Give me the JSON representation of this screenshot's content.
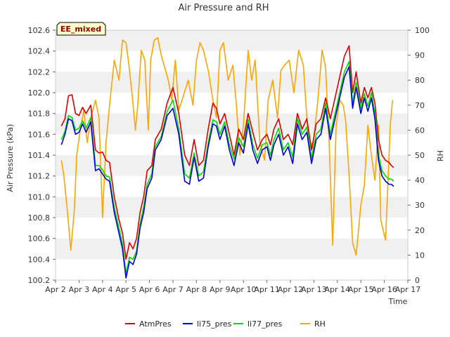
{
  "chart_data": {
    "type": "line",
    "title": "Air Pressure and RH",
    "badge": "EE_mixed",
    "xlabel": "Time",
    "ylabel": "Air Pressure (kPa)",
    "y2label": "RH",
    "x_ticks": [
      "Apr 2",
      "Apr 3",
      "Apr 4",
      "Apr 5",
      "Apr 6",
      "Apr 7",
      "Apr 8",
      "Apr 9",
      "Apr 10",
      "Apr 11",
      "Apr 12",
      "Apr 13",
      "Apr 14",
      "Apr 15",
      "Apr 16",
      "Apr 17"
    ],
    "xlim": [
      0,
      15
    ],
    "ylim": [
      100.2,
      102.6
    ],
    "y_ticks": [
      100.2,
      100.4,
      100.6,
      100.8,
      101.0,
      101.2,
      101.4,
      101.6,
      101.8,
      102.0,
      102.2,
      102.4,
      102.6
    ],
    "y2lim": [
      0,
      100
    ],
    "y2_ticks": [
      0,
      10,
      20,
      30,
      40,
      50,
      60,
      70,
      80,
      90,
      100
    ],
    "grid": "horizontal bands",
    "legend_position": "bottom",
    "series": [
      {
        "name": "AtmPres",
        "color": "#dd0000",
        "axis": "left",
        "x": [
          0.25,
          0.4,
          0.55,
          0.7,
          0.85,
          1.0,
          1.15,
          1.3,
          1.5,
          1.7,
          1.85,
          2.0,
          2.15,
          2.3,
          2.5,
          2.7,
          2.85,
          3.0,
          3.15,
          3.3,
          3.45,
          3.6,
          3.75,
          3.9,
          4.1,
          4.25,
          4.5,
          4.75,
          5.0,
          5.25,
          5.5,
          5.7,
          5.9,
          6.1,
          6.3,
          6.5,
          6.7,
          6.85,
          7.0,
          7.2,
          7.4,
          7.6,
          7.8,
          8.0,
          8.2,
          8.4,
          8.6,
          8.8,
          9.0,
          9.15,
          9.3,
          9.5,
          9.7,
          9.9,
          10.1,
          10.3,
          10.5,
          10.7,
          10.9,
          11.1,
          11.3,
          11.5,
          11.7,
          11.9,
          12.1,
          12.3,
          12.5,
          12.65,
          12.8,
          13.0,
          13.15,
          13.3,
          13.45,
          13.6,
          13.75,
          13.9,
          14.05,
          14.2,
          14.3,
          14.4
        ],
        "y": [
          101.68,
          101.75,
          101.97,
          101.98,
          101.8,
          101.78,
          101.86,
          101.8,
          101.88,
          101.45,
          101.42,
          101.43,
          101.35,
          101.33,
          101.0,
          100.78,
          100.65,
          100.4,
          100.56,
          100.5,
          100.6,
          100.85,
          101.0,
          101.25,
          101.3,
          101.55,
          101.65,
          101.9,
          102.05,
          101.8,
          101.4,
          101.3,
          101.55,
          101.3,
          101.35,
          101.65,
          101.9,
          101.85,
          101.7,
          101.8,
          101.6,
          101.4,
          101.65,
          101.55,
          101.8,
          101.62,
          101.45,
          101.55,
          101.6,
          101.5,
          101.65,
          101.75,
          101.55,
          101.6,
          101.5,
          101.8,
          101.65,
          101.75,
          101.45,
          101.7,
          101.75,
          101.95,
          101.75,
          101.95,
          102.15,
          102.35,
          102.45,
          102.0,
          102.2,
          101.9,
          102.05,
          101.95,
          102.05,
          101.9,
          101.55,
          101.4,
          101.35,
          101.33,
          101.3,
          101.28
        ]
      },
      {
        "name": "li75_pres",
        "color": "#0000dd",
        "axis": "left",
        "x": [
          0.25,
          0.4,
          0.55,
          0.7,
          0.85,
          1.0,
          1.15,
          1.3,
          1.5,
          1.7,
          1.85,
          2.0,
          2.15,
          2.3,
          2.5,
          2.7,
          2.85,
          3.0,
          3.15,
          3.3,
          3.45,
          3.6,
          3.75,
          3.9,
          4.1,
          4.25,
          4.5,
          4.75,
          5.0,
          5.25,
          5.5,
          5.7,
          5.9,
          6.1,
          6.3,
          6.5,
          6.7,
          6.85,
          7.0,
          7.2,
          7.4,
          7.6,
          7.8,
          8.0,
          8.2,
          8.4,
          8.6,
          8.8,
          9.0,
          9.15,
          9.3,
          9.5,
          9.7,
          9.9,
          10.1,
          10.3,
          10.5,
          10.7,
          10.9,
          11.1,
          11.3,
          11.5,
          11.7,
          11.9,
          12.1,
          12.3,
          12.5,
          12.65,
          12.8,
          13.0,
          13.15,
          13.3,
          13.45,
          13.6,
          13.75,
          13.9,
          14.05,
          14.2,
          14.3,
          14.4
        ],
        "y": [
          101.5,
          101.6,
          101.75,
          101.73,
          101.6,
          101.62,
          101.7,
          101.62,
          101.72,
          101.25,
          101.27,
          101.22,
          101.17,
          101.15,
          100.85,
          100.65,
          100.5,
          100.22,
          100.38,
          100.35,
          100.45,
          100.7,
          100.85,
          101.08,
          101.18,
          101.45,
          101.55,
          101.78,
          101.85,
          101.6,
          101.15,
          101.12,
          101.38,
          101.15,
          101.18,
          101.48,
          101.7,
          101.68,
          101.55,
          101.68,
          101.45,
          101.3,
          101.52,
          101.42,
          101.7,
          101.45,
          101.32,
          101.45,
          101.48,
          101.35,
          101.5,
          101.6,
          101.4,
          101.48,
          101.32,
          101.7,
          101.55,
          101.62,
          101.32,
          101.55,
          101.6,
          101.85,
          101.55,
          101.75,
          101.95,
          102.15,
          102.25,
          101.85,
          102.05,
          101.8,
          101.95,
          101.82,
          101.95,
          101.75,
          101.35,
          101.2,
          101.15,
          101.12,
          101.12,
          101.1
        ]
      },
      {
        "name": "li77_pres",
        "color": "#00dd00",
        "axis": "left",
        "x": [
          0.25,
          0.4,
          0.55,
          0.7,
          0.85,
          1.0,
          1.15,
          1.3,
          1.5,
          1.7,
          1.85,
          2.0,
          2.15,
          2.3,
          2.5,
          2.7,
          2.85,
          3.0,
          3.15,
          3.3,
          3.45,
          3.6,
          3.75,
          3.9,
          4.1,
          4.25,
          4.5,
          4.75,
          5.0,
          5.25,
          5.5,
          5.7,
          5.9,
          6.1,
          6.3,
          6.5,
          6.7,
          6.85,
          7.0,
          7.2,
          7.4,
          7.6,
          7.8,
          8.0,
          8.2,
          8.4,
          8.6,
          8.8,
          9.0,
          9.15,
          9.3,
          9.5,
          9.7,
          9.9,
          10.1,
          10.3,
          10.5,
          10.7,
          10.9,
          11.1,
          11.3,
          11.5,
          11.7,
          11.9,
          12.1,
          12.3,
          12.5,
          12.65,
          12.8,
          13.0,
          13.15,
          13.3,
          13.45,
          13.6,
          13.75,
          13.9,
          14.05,
          14.2,
          14.3,
          14.4
        ],
        "y": [
          101.55,
          101.63,
          101.78,
          101.76,
          101.64,
          101.66,
          101.73,
          101.66,
          101.76,
          101.3,
          101.3,
          101.26,
          101.2,
          101.19,
          100.9,
          100.7,
          100.55,
          100.26,
          100.42,
          100.4,
          100.48,
          100.74,
          100.9,
          101.12,
          101.22,
          101.48,
          101.58,
          101.82,
          101.93,
          101.65,
          101.22,
          101.18,
          101.42,
          101.2,
          101.24,
          101.52,
          101.74,
          101.72,
          101.6,
          101.72,
          101.5,
          101.36,
          101.57,
          101.48,
          101.74,
          101.5,
          101.37,
          101.5,
          101.52,
          101.4,
          101.55,
          101.66,
          101.45,
          101.52,
          101.38,
          101.75,
          101.6,
          101.67,
          101.37,
          101.6,
          101.65,
          101.9,
          101.6,
          101.8,
          102.0,
          102.2,
          102.3,
          101.9,
          102.1,
          101.85,
          101.99,
          101.87,
          102.0,
          101.8,
          101.4,
          101.25,
          101.2,
          101.17,
          101.17,
          101.15
        ]
      },
      {
        "name": "RH",
        "color": "#ffa500",
        "axis": "right",
        "x": [
          0.25,
          0.35,
          0.5,
          0.65,
          0.8,
          0.9,
          1.05,
          1.2,
          1.35,
          1.5,
          1.7,
          1.85,
          2.0,
          2.15,
          2.3,
          2.5,
          2.7,
          2.85,
          3.0,
          3.1,
          3.25,
          3.4,
          3.5,
          3.65,
          3.8,
          3.95,
          4.05,
          4.2,
          4.35,
          4.5,
          4.65,
          4.8,
          4.95,
          5.1,
          5.25,
          5.45,
          5.65,
          5.85,
          6.0,
          6.15,
          6.3,
          6.5,
          6.7,
          6.85,
          7.0,
          7.15,
          7.35,
          7.55,
          7.7,
          7.85,
          8.0,
          8.2,
          8.35,
          8.5,
          8.7,
          8.9,
          9.05,
          9.25,
          9.45,
          9.6,
          9.75,
          9.95,
          10.15,
          10.35,
          10.55,
          10.75,
          10.95,
          11.15,
          11.35,
          11.5,
          11.65,
          11.8,
          11.95,
          12.1,
          12.25,
          12.35,
          12.5,
          12.65,
          12.8,
          13.0,
          13.15,
          13.3,
          13.45,
          13.6,
          13.75,
          13.85,
          13.95,
          14.05,
          14.15,
          14.25,
          14.35
        ],
        "y": [
          48,
          42,
          28,
          12,
          28,
          50,
          60,
          68,
          55,
          65,
          72,
          65,
          25,
          55,
          70,
          88,
          80,
          96,
          95,
          88,
          75,
          60,
          70,
          92,
          88,
          60,
          88,
          96,
          97,
          90,
          85,
          80,
          72,
          88,
          68,
          74,
          80,
          70,
          88,
          95,
          92,
          84,
          72,
          65,
          92,
          95,
          80,
          86,
          70,
          50,
          62,
          92,
          80,
          88,
          55,
          48,
          72,
          80,
          65,
          84,
          86,
          88,
          75,
          92,
          86,
          58,
          53,
          70,
          92,
          85,
          55,
          14,
          62,
          72,
          70,
          64,
          42,
          15,
          10,
          30,
          38,
          62,
          50,
          40,
          62,
          24,
          20,
          16,
          38,
          62,
          72
        ]
      }
    ]
  }
}
